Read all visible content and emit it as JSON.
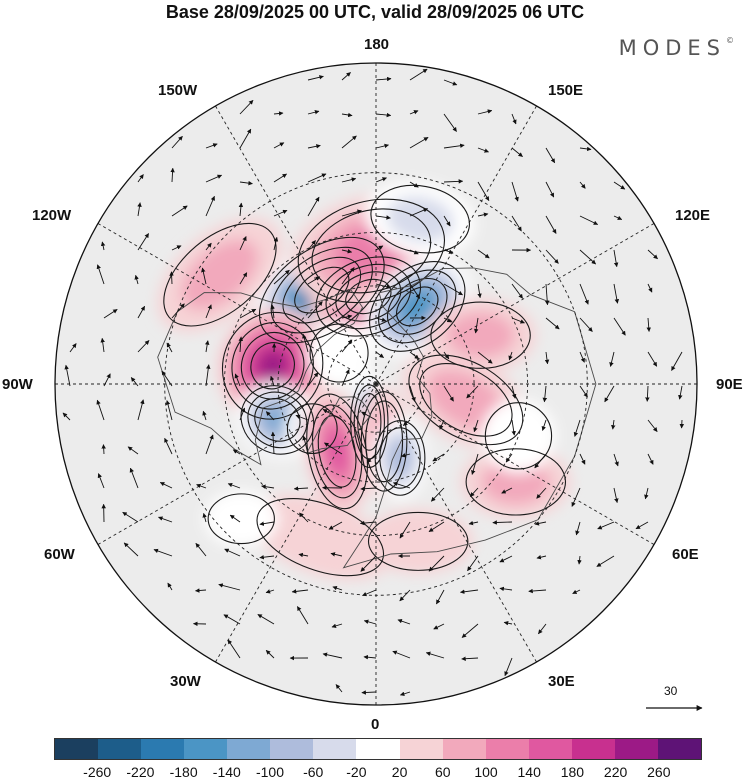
{
  "title": "Base 28/09/2025 00 UTC, valid 28/09/2025 06 UTC",
  "brand": {
    "name": "MODES",
    "mark": "©"
  },
  "longitude_labels": {
    "top": "180",
    "bottom": "0",
    "left": "90W",
    "right": "90E",
    "upper_left": "150W",
    "upper_right": "150E",
    "mid_left": "120W",
    "mid_right": "120E",
    "lower_left": "60W",
    "lower_right": "60E",
    "bottom_left": "30W",
    "bottom_right": "30E"
  },
  "reference_vector": {
    "label": "30"
  },
  "colorbar": {
    "colors": [
      "#1b3f5f",
      "#1d5d8a",
      "#2b7ab0",
      "#4b95c5",
      "#7ea9d3",
      "#aebcdc",
      "#d7dbeb",
      "#ffffff",
      "#f6d3d6",
      "#f2a9bc",
      "#eb7eaa",
      "#e058a0",
      "#c8308f",
      "#9c1a86",
      "#5e1376"
    ],
    "ticks": [
      "-260",
      "-220",
      "-180",
      "-140",
      "-100",
      "-60",
      "-20",
      "20",
      "60",
      "100",
      "140",
      "180",
      "220",
      "260"
    ]
  },
  "anomalies": [
    {
      "name": "neg-alaska",
      "lon": -150,
      "lat": 57,
      "value": -260,
      "sx": 1.7,
      "sy": 1.0,
      "rot": -35
    },
    {
      "name": "pos-chukotka",
      "lon": -175,
      "lat": 63,
      "value": 210,
      "sx": 1.3,
      "sy": 0.9,
      "rot": -20
    },
    {
      "name": "pos-bering",
      "lon": -178,
      "lat": 50,
      "value": 120,
      "sx": 1.8,
      "sy": 1.2,
      "rot": -15
    },
    {
      "name": "neg-siberia-east",
      "lon": 152,
      "lat": 63,
      "value": -210,
      "sx": 1.3,
      "sy": 0.9,
      "rot": -40
    },
    {
      "name": "neg-pacific-ne",
      "lon": 165,
      "lat": 40,
      "value": -60,
      "sx": 1.2,
      "sy": 0.8,
      "rot": 10
    },
    {
      "name": "pos-canada",
      "lon": -100,
      "lat": 58,
      "value": 220,
      "sx": 1.2,
      "sy": 1.3,
      "rot": 20
    },
    {
      "name": "pos-pacific-nw",
      "lon": -125,
      "lat": 35,
      "value": 60,
      "sx": 1.6,
      "sy": 0.9,
      "rot": -40
    },
    {
      "name": "neg-labrador",
      "lon": -70,
      "lat": 58,
      "value": -170,
      "sx": 0.9,
      "sy": 0.8,
      "rot": 30
    },
    {
      "name": "neg-davis",
      "lon": -55,
      "lat": 66,
      "value": -80,
      "sx": 0.6,
      "sy": 0.6,
      "rot": 0
    },
    {
      "name": "neg-greenland-n",
      "lon": -10,
      "lat": 78,
      "value": -150,
      "sx": 0.45,
      "sy": 1.1,
      "rot": 0
    },
    {
      "name": "pos-greenland",
      "lon": -30,
      "lat": 66,
      "value": 170,
      "sx": 0.7,
      "sy": 1.4,
      "rot": -10
    },
    {
      "name": "pos-greenland-sea",
      "lon": 8,
      "lat": 72,
      "value": 90,
      "sx": 0.55,
      "sy": 1.2,
      "rot": 0
    },
    {
      "name": "neg-norway",
      "lon": 18,
      "lat": 66,
      "value": -130,
      "sx": 0.6,
      "sy": 0.9,
      "rot": 0
    },
    {
      "name": "pos-russia-n",
      "lon": 80,
      "lat": 62,
      "value": 90,
      "sx": 1.5,
      "sy": 0.9,
      "rot": 30
    },
    {
      "name": "pos-siberia",
      "lon": 115,
      "lat": 55,
      "value": 80,
      "sx": 1.2,
      "sy": 0.8,
      "rot": 0
    },
    {
      "name": "pos-kazakh",
      "lon": 55,
      "lat": 40,
      "value": 70,
      "sx": 1.2,
      "sy": 0.8,
      "rot": 0
    },
    {
      "name": "neg-caspian",
      "lon": 70,
      "lat": 45,
      "value": -50,
      "sx": 0.8,
      "sy": 0.8,
      "rot": 0
    },
    {
      "name": "pos-atlantic",
      "lon": -20,
      "lat": 42,
      "value": 50,
      "sx": 1.6,
      "sy": 0.8,
      "rot": 20
    },
    {
      "name": "pos-europe",
      "lon": 15,
      "lat": 42,
      "value": 40,
      "sx": 1.2,
      "sy": 0.7,
      "rot": 0
    },
    {
      "name": "neg-atlantic-w",
      "lon": -45,
      "lat": 35,
      "value": -50,
      "sx": 0.8,
      "sy": 0.6,
      "rot": 0
    },
    {
      "name": "neg-alaska-east",
      "lon": -130,
      "lat": 75,
      "value": -40,
      "sx": 0.7,
      "sy": 0.7,
      "rot": 0
    }
  ]
}
